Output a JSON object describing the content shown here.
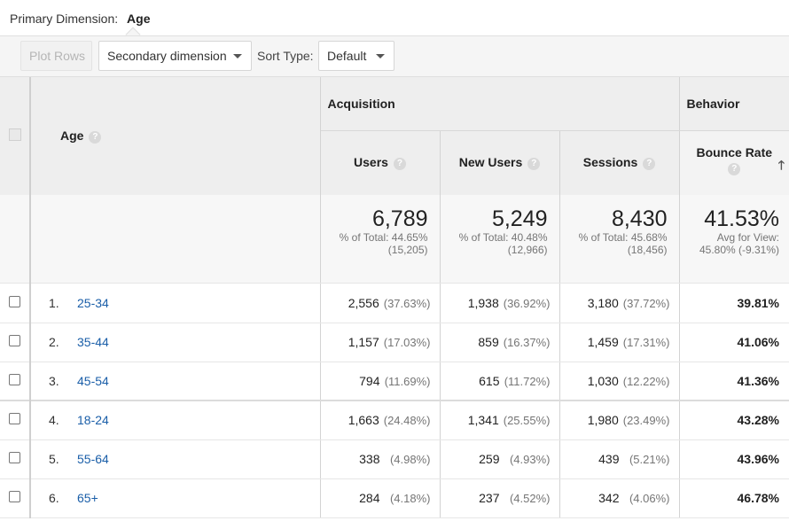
{
  "primary_dimension": {
    "label": "Primary Dimension:",
    "value": "Age"
  },
  "toolbar": {
    "plot_rows": "Plot Rows",
    "secondary_dimension": "Secondary dimension",
    "sort_type_label": "Sort Type:",
    "sort_type_value": "Default"
  },
  "table": {
    "age_header": "Age",
    "group_acquisition": "Acquisition",
    "group_behavior": "Behavior",
    "metrics": {
      "users": "Users",
      "new_users": "New Users",
      "sessions": "Sessions",
      "bounce_rate": "Bounce Rate"
    },
    "help_glyph": "?",
    "sort_glyph": "🡑",
    "totals": {
      "users": {
        "value": "6,789",
        "line1": "% of Total: 44.65%",
        "line2": "(15,205)"
      },
      "new_users": {
        "value": "5,249",
        "line1": "% of Total: 40.48%",
        "line2": "(12,966)"
      },
      "sessions": {
        "value": "8,430",
        "line1": "% of Total: 45.68%",
        "line2": "(18,456)"
      },
      "bounce_rate": {
        "value": "41.53%",
        "line1": "Avg for View:",
        "line2": "45.80% (-9.31%)"
      }
    },
    "rows": [
      {
        "index": "1.",
        "age": "25-34",
        "users": "2,556",
        "users_pct": "(37.63%)",
        "new_users": "1,938",
        "new_users_pct": "(36.92%)",
        "sessions": "3,180",
        "sessions_pct": "(37.72%)",
        "bounce_rate": "39.81%"
      },
      {
        "index": "2.",
        "age": "35-44",
        "users": "1,157",
        "users_pct": "(17.03%)",
        "new_users": "859",
        "new_users_pct": "(16.37%)",
        "sessions": "1,459",
        "sessions_pct": "(17.31%)",
        "bounce_rate": "41.06%"
      },
      {
        "index": "3.",
        "age": "45-54",
        "users": "794",
        "users_pct": "(11.69%)",
        "new_users": "615",
        "new_users_pct": "(11.72%)",
        "sessions": "1,030",
        "sessions_pct": "(12.22%)",
        "bounce_rate": "41.36%"
      },
      {
        "index": "4.",
        "age": "18-24",
        "users": "1,663",
        "users_pct": "(24.48%)",
        "new_users": "1,341",
        "new_users_pct": "(25.55%)",
        "sessions": "1,980",
        "sessions_pct": "(23.49%)",
        "bounce_rate": "43.28%"
      },
      {
        "index": "5.",
        "age": "55-64",
        "users": "338",
        "users_pct": "(4.98%)",
        "new_users": "259",
        "new_users_pct": "(4.93%)",
        "sessions": "439",
        "sessions_pct": "(5.21%)",
        "bounce_rate": "43.96%"
      },
      {
        "index": "6.",
        "age": "65+",
        "users": "284",
        "users_pct": "(4.18%)",
        "new_users": "237",
        "new_users_pct": "(4.52%)",
        "sessions": "342",
        "sessions_pct": "(4.06%)",
        "bounce_rate": "46.78%"
      }
    ]
  }
}
